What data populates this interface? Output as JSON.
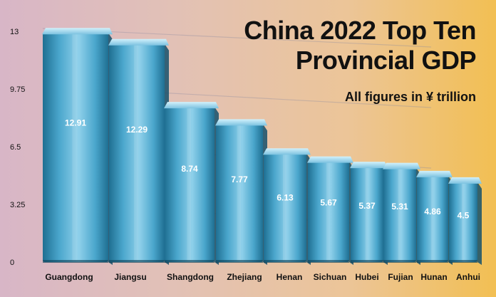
{
  "title": "China 2022 Top Ten Provincial GDP",
  "subtitle": "All figures in ¥ trillion",
  "chart_data": {
    "type": "bar",
    "categories": [
      "Guangdong",
      "Jiangsu",
      "Shangdong",
      "Zhejiang",
      "Henan",
      "Sichuan",
      "Hubei",
      "Fujian",
      "Hunan",
      "Anhui"
    ],
    "values": [
      12.91,
      12.29,
      8.74,
      7.77,
      6.13,
      5.67,
      5.37,
      5.31,
      4.86,
      4.5
    ],
    "value_labels": [
      "12.91",
      "12.29",
      "8.74",
      "7.77",
      "6.13",
      "5.67",
      "5.37",
      "5.31",
      "4.86",
      "4.5"
    ],
    "title": "China 2022 Top Ten Provincial GDP",
    "subtitle": "All figures in ¥ trillion",
    "xlabel": "",
    "ylabel": "",
    "ylim": [
      0,
      13
    ],
    "yticks": [
      0,
      3.25,
      6.5,
      9.75,
      13
    ],
    "ytick_labels": [
      "0",
      "3.25",
      "6.5",
      "9.75",
      "13"
    ],
    "grid": true,
    "legend": "none",
    "colors": {
      "bar_light": "#8fd0ea",
      "bar_mid": "#4aa6cc",
      "bar_dark": "#1f6f92",
      "bar_top": "#b8e6f6",
      "text": "#111111",
      "label_text": "#ffffff"
    }
  }
}
